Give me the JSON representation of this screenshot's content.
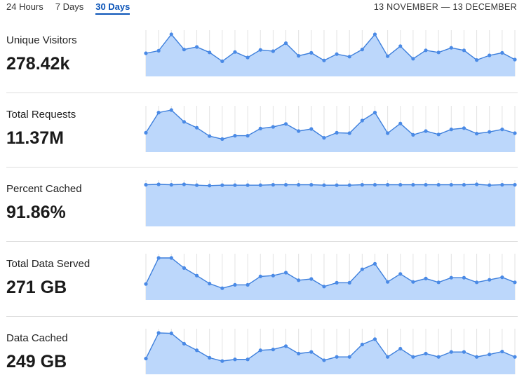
{
  "tabs": [
    {
      "label": "24 Hours",
      "active": false
    },
    {
      "label": "7 Days",
      "active": false
    },
    {
      "label": "30 Days",
      "active": true
    }
  ],
  "date_range": "13 NOVEMBER — 13 DECEMBER",
  "colors": {
    "accent": "#0b54b8",
    "line": "#3d7fdc",
    "fill": "#bcd7fb",
    "point": "#4a8ae6",
    "gridline": "#e2e2e2"
  },
  "metrics": [
    {
      "key": "unique_visitors",
      "label": "Unique Visitors",
      "value": "278.42k",
      "series": [
        0.55,
        0.61,
        1.0,
        0.64,
        0.7,
        0.57,
        0.36,
        0.58,
        0.45,
        0.63,
        0.6,
        0.79,
        0.49,
        0.56,
        0.38,
        0.53,
        0.47,
        0.64,
        1.0,
        0.48,
        0.72,
        0.42,
        0.62,
        0.57,
        0.68,
        0.62,
        0.39,
        0.5,
        0.56,
        0.4
      ]
    },
    {
      "key": "total_requests",
      "label": "Total Requests",
      "value": "11.37M",
      "series": [
        0.46,
        0.94,
        1.0,
        0.72,
        0.58,
        0.38,
        0.31,
        0.39,
        0.39,
        0.56,
        0.6,
        0.67,
        0.5,
        0.55,
        0.34,
        0.46,
        0.45,
        0.75,
        0.94,
        0.45,
        0.68,
        0.41,
        0.5,
        0.42,
        0.54,
        0.57,
        0.44,
        0.48,
        0.54,
        0.45
      ]
    },
    {
      "key": "percent_cached",
      "label": "Percent Cached",
      "value": "91.86%",
      "series": [
        0.99,
        1.0,
        0.99,
        1.0,
        0.98,
        0.97,
        0.98,
        0.98,
        0.98,
        0.98,
        0.99,
        0.99,
        0.99,
        0.99,
        0.98,
        0.98,
        0.98,
        0.99,
        0.99,
        0.99,
        0.99,
        0.99,
        0.99,
        0.99,
        0.99,
        0.99,
        1.0,
        0.98,
        0.99,
        0.99
      ]
    },
    {
      "key": "total_data_served",
      "label": "Total Data Served",
      "value": "271 GB",
      "series": [
        0.38,
        1.0,
        1.0,
        0.76,
        0.58,
        0.39,
        0.28,
        0.36,
        0.36,
        0.56,
        0.58,
        0.65,
        0.47,
        0.5,
        0.32,
        0.41,
        0.41,
        0.73,
        0.86,
        0.43,
        0.62,
        0.43,
        0.51,
        0.42,
        0.53,
        0.53,
        0.42,
        0.48,
        0.54,
        0.42
      ]
    },
    {
      "key": "data_cached",
      "label": "Data Cached",
      "value": "249 GB",
      "series": [
        0.38,
        1.0,
        0.99,
        0.74,
        0.58,
        0.4,
        0.32,
        0.36,
        0.36,
        0.58,
        0.6,
        0.68,
        0.5,
        0.54,
        0.34,
        0.42,
        0.42,
        0.72,
        0.85,
        0.42,
        0.62,
        0.42,
        0.5,
        0.42,
        0.54,
        0.54,
        0.42,
        0.48,
        0.55,
        0.42
      ]
    }
  ]
}
